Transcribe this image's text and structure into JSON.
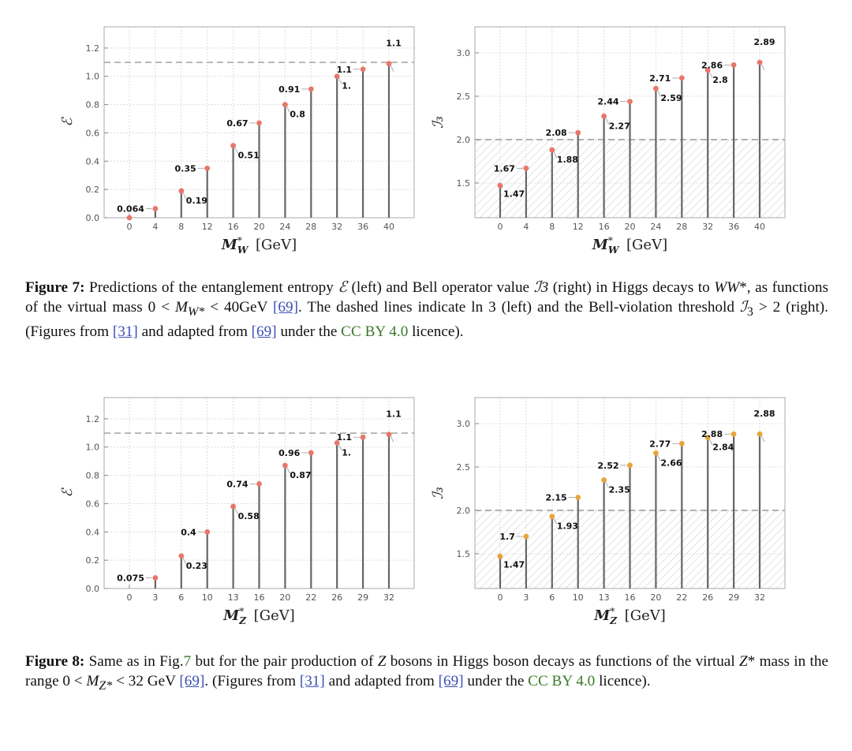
{
  "chart_data": [
    {
      "type": "scatter",
      "title": "",
      "xlabel_main": "M",
      "xlabel_sup": "*",
      "xlabel_sub": "W",
      "xlabel_unit": "[GeV]",
      "ylabel": "ℰ",
      "categories": [
        "0",
        "4",
        "8",
        "12",
        "16",
        "20",
        "24",
        "28",
        "32",
        "36",
        "40"
      ],
      "values": [
        0.0,
        0.064,
        0.19,
        0.35,
        0.51,
        0.67,
        0.8,
        0.91,
        1.0,
        1.05,
        1.09
      ],
      "labels": [
        "",
        "0.064",
        "0.19",
        "0.35",
        "0.51",
        "0.67",
        "0.8",
        "0.91",
        "1.",
        "1.1",
        "1.1"
      ],
      "ylim": [
        0,
        1.35
      ],
      "yticks": [
        "0.0",
        "0.2",
        "0.4",
        "0.6",
        "0.8",
        "1.0",
        "1.2"
      ],
      "threshold": 1.0986,
      "hatched": false,
      "marker_color": "#e8766a",
      "grid": true
    },
    {
      "type": "scatter",
      "title": "",
      "xlabel_main": "M",
      "xlabel_sup": "*",
      "xlabel_sub": "W",
      "xlabel_unit": "[GeV]",
      "ylabel": "ℐ₃",
      "categories": [
        "0",
        "4",
        "8",
        "12",
        "16",
        "20",
        "24",
        "28",
        "32",
        "36",
        "40"
      ],
      "values": [
        1.47,
        1.67,
        1.88,
        2.08,
        2.27,
        2.44,
        2.59,
        2.71,
        2.8,
        2.86,
        2.89
      ],
      "labels": [
        "1.47",
        "1.67",
        "1.88",
        "2.08",
        "2.27",
        "2.44",
        "2.59",
        "2.71",
        "2.8",
        "2.86",
        "2.89"
      ],
      "ylim": [
        1.1,
        3.3
      ],
      "yticks": [
        "1.5",
        "2.0",
        "2.5",
        "3.0"
      ],
      "threshold": 2.0,
      "hatched": true,
      "marker_color": "#e8766a",
      "grid": true
    },
    {
      "type": "scatter",
      "title": "",
      "xlabel_main": "M",
      "xlabel_sup": "*",
      "xlabel_sub": "Z",
      "xlabel_unit": "[GeV]",
      "ylabel": "ℰ",
      "categories": [
        "0",
        "3",
        "6",
        "10",
        "13",
        "16",
        "20",
        "22",
        "26",
        "29",
        "32"
      ],
      "values": [
        null,
        0.075,
        0.23,
        0.4,
        0.58,
        0.74,
        0.87,
        0.96,
        1.03,
        1.07,
        1.09
      ],
      "labels": [
        "",
        "0.075",
        "0.23",
        "0.4",
        "0.58",
        "0.74",
        "0.87",
        "0.96",
        "1.",
        "1.1",
        "1.1"
      ],
      "ylim": [
        0,
        1.35
      ],
      "yticks": [
        "0.0",
        "0.2",
        "0.4",
        "0.6",
        "0.8",
        "1.0",
        "1.2"
      ],
      "threshold": 1.0986,
      "hatched": false,
      "marker_color": "#e8766a",
      "grid": true
    },
    {
      "type": "scatter",
      "title": "",
      "xlabel_main": "M",
      "xlabel_sup": "*",
      "xlabel_sub": "Z",
      "xlabel_unit": "[GeV]",
      "ylabel": "ℐ₃",
      "categories": [
        "0",
        "3",
        "6",
        "10",
        "13",
        "16",
        "20",
        "22",
        "26",
        "29",
        "32"
      ],
      "values": [
        1.47,
        1.7,
        1.93,
        2.15,
        2.35,
        2.52,
        2.66,
        2.77,
        2.84,
        2.88,
        2.88
      ],
      "labels": [
        "1.47",
        "1.7",
        "1.93",
        "2.15",
        "2.35",
        "2.52",
        "2.66",
        "2.77",
        "2.84",
        "2.88",
        "2.88"
      ],
      "ylim": [
        1.1,
        3.3
      ],
      "yticks": [
        "1.5",
        "2.0",
        "2.5",
        "3.0"
      ],
      "threshold": 2.0,
      "hatched": true,
      "marker_color": "#e8a53a",
      "grid": true
    }
  ],
  "captions": {
    "fig7": {
      "label": "Figure 7:",
      "t1": " Predictions of the entanglement entropy ",
      "m1": "ℰ",
      "t2": " (left) and Bell operator value ",
      "m2": "ℐ3",
      "t3": " (right) in Higgs decays to ",
      "m3": "WW",
      "t4": "*, as functions of the virtual mass 0 < ",
      "m4": "M",
      "m4sub": "W*",
      "t5": " < 40GeV ",
      "ref1": "[69]",
      "t6": ". The dashed lines indicate ln 3 (left) and the Bell-violation threshold ",
      "m5": "ℐ",
      "m5sub": "3",
      "t7": " > 2 (right). (Figures from ",
      "ref2": "[31]",
      "t8": " and adapted from ",
      "ref3": "[69]",
      "t9": " under the ",
      "license": "CC BY 4.0",
      "t10": " licence)."
    },
    "fig8": {
      "label": "Figure 8:",
      "t1": " Same as in Fig.",
      "figref": "7",
      "t2": " but for the pair production of ",
      "m1": "Z",
      "t3": " bosons in Higgs boson decays as functions of the virtual ",
      "m2": "Z",
      "t4": "* mass in the range 0 < ",
      "m3": "M",
      "m3sub": "Z*",
      "t5": " < 32 GeV ",
      "ref1": "[69]",
      "t6": ". (Figures from ",
      "ref2": "[31]",
      "t7": " and adapted from ",
      "ref3": "[69]",
      "t8": " under the ",
      "license": "CC BY 4.0",
      "t9": " licence)."
    }
  }
}
